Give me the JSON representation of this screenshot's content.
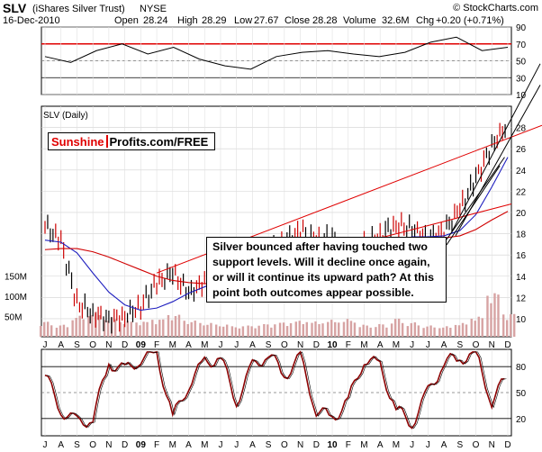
{
  "header": {
    "symbol": "SLV",
    "name": "(iShares Silver Trust)",
    "exchange": "NYSE",
    "source": "© StockCharts.com",
    "date": "16-Dec-2010",
    "open_label": "Open",
    "open": "28.24",
    "high_label": "High",
    "high": "28.29",
    "low_label": "Low",
    "low": "27.67",
    "close_label": "Close",
    "close": "28.28",
    "volume_label": "Volume",
    "volume": "32.6M",
    "chg_label": "Chg",
    "chg": "+0.20 (+0.71%)"
  },
  "logo": {
    "part1": "Sunshine",
    "part2": "Profits.com/FREE"
  },
  "annotation": "Silver bounced after having touched two support levels. Will it decline once again, or will it continue its upward path? At this point both outcomes appear possible.",
  "colors": {
    "price_up": "#000000",
    "price_down": "#cc0000",
    "ma_fast": "#1f1fbf",
    "ma_slow": "#d00000",
    "trend": "#e00000",
    "volume": "#d7a3a3",
    "stoch": "#8b0000",
    "rsi_line": "#d00000"
  },
  "chart_data": [
    {
      "type": "line",
      "title": "RSI",
      "yticks": [
        90,
        70,
        50,
        30,
        10
      ],
      "ylim": [
        10,
        90
      ],
      "x": [
        "Jun-09",
        "Jul-09",
        "Aug-09",
        "Sep-09",
        "Oct-09",
        "Nov-09",
        "Dec-09",
        "Jan-10",
        "Feb-10",
        "Mar-10",
        "Apr-10",
        "May-10",
        "Jun-10",
        "Jul-10",
        "Aug-10",
        "Sep-10",
        "Oct-10",
        "Nov-10",
        "Dec-10"
      ],
      "series": [
        {
          "values": [
            55,
            48,
            62,
            70,
            58,
            66,
            52,
            44,
            40,
            55,
            60,
            62,
            58,
            55,
            60,
            72,
            78,
            62,
            66
          ]
        }
      ]
    },
    {
      "type": "line",
      "title": "SLV (Daily)",
      "ylabel": "",
      "yticks": [
        10,
        12,
        14,
        16,
        18,
        20,
        22,
        24,
        26,
        28
      ],
      "ylim": [
        8.3,
        30
      ],
      "xticks": [
        "J",
        "A",
        "S",
        "O",
        "N",
        "D",
        "09",
        "F",
        "M",
        "A",
        "M",
        "J",
        "J",
        "A",
        "S",
        "O",
        "N",
        "D",
        "10",
        "F",
        "M",
        "A",
        "M",
        "J",
        "J",
        "A",
        "S",
        "O",
        "N",
        "D"
      ],
      "x": [
        "Jul-08",
        "Aug-08",
        "Sep-08",
        "Oct-08",
        "Nov-08",
        "Dec-08",
        "Jan-09",
        "Feb-09",
        "Mar-09",
        "Apr-09",
        "May-09",
        "Jun-09",
        "Jul-09",
        "Aug-09",
        "Sep-09",
        "Oct-09",
        "Nov-09",
        "Dec-09",
        "Jan-10",
        "Feb-10",
        "Mar-10",
        "Apr-10",
        "May-10",
        "Jun-10",
        "Jul-10",
        "Aug-10",
        "Sep-10",
        "Oct-10",
        "Nov-10",
        "Dec-10"
      ],
      "series": [
        {
          "values": [
            18.8,
            17.2,
            11.5,
            10.5,
            9.9,
            10.2,
            11.2,
            13.3,
            14.3,
            12.4,
            13.4,
            15.4,
            13.2,
            14.4,
            16.5,
            17.3,
            18.2,
            17.3,
            17.7,
            15.5,
            16.9,
            17.9,
            18.9,
            18.4,
            17.6,
            18.2,
            20.3,
            23.2,
            26.3,
            28.3
          ]
        },
        {
          "values": [
            17.4,
            17.2,
            16.2,
            14.3,
            12.5,
            11.3,
            10.8,
            11.0,
            11.6,
            12.4,
            13.0,
            13.6,
            14.2,
            14.6,
            15.0,
            15.6,
            16.3,
            16.9,
            17.0,
            16.7,
            16.6,
            16.9,
            17.3,
            17.7,
            17.7,
            17.8,
            18.3,
            19.8,
            22.4,
            25.2
          ]
        },
        {
          "values": [
            16.5,
            16.6,
            16.6,
            16.3,
            15.8,
            15.2,
            14.6,
            14.0,
            13.6,
            13.4,
            13.3,
            13.3,
            13.4,
            13.6,
            13.8,
            14.2,
            14.6,
            15.0,
            15.5,
            15.9,
            16.3,
            16.6,
            16.9,
            17.2,
            17.4,
            17.6,
            17.8,
            18.4,
            19.3,
            20.1
          ]
        }
      ],
      "volume": {
        "yticks": [
          "150M",
          "100M",
          "50M"
        ],
        "values": [
          38,
          30,
          52,
          62,
          48,
          40,
          38,
          44,
          55,
          40,
          34,
          30,
          26,
          28,
          32,
          36,
          40,
          38,
          42,
          44,
          30,
          32,
          46,
          36,
          28,
          26,
          34,
          50,
          110,
          58
        ]
      }
    },
    {
      "type": "line",
      "title": "Stochastic",
      "yticks": [
        80,
        50,
        20
      ],
      "ylim": [
        0,
        100
      ],
      "xticks": [
        "J",
        "A",
        "S",
        "O",
        "N",
        "D",
        "09",
        "F",
        "M",
        "A",
        "M",
        "J",
        "J",
        "A",
        "S",
        "O",
        "N",
        "D",
        "10",
        "F",
        "M",
        "A",
        "M",
        "J",
        "J",
        "A",
        "S",
        "O",
        "N",
        "D"
      ],
      "series": [
        {
          "values": [
            70,
            30,
            15,
            20,
            85,
            75,
            90,
            95,
            20,
            60,
            85,
            90,
            40,
            80,
            95,
            70,
            90,
            30,
            20,
            40,
            90,
            80,
            30,
            15,
            50,
            85,
            90,
            95,
            40,
            70
          ]
        }
      ]
    }
  ]
}
